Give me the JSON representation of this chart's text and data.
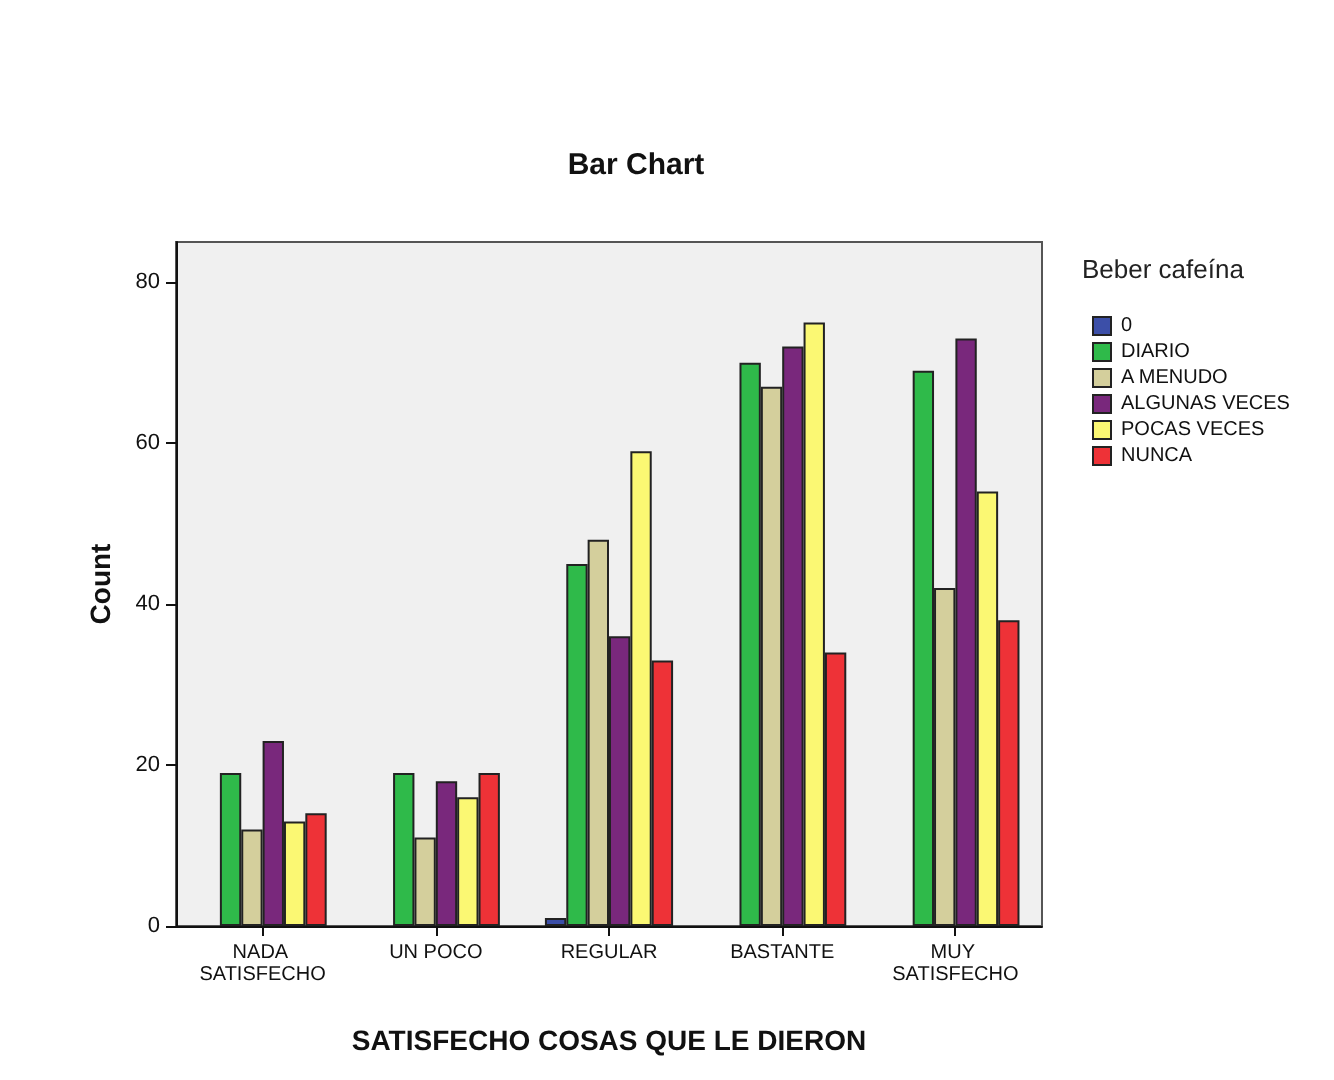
{
  "chart_data": {
    "type": "bar",
    "title": "Bar Chart",
    "xlabel": "SATISFECHO COSAS QUE LE DIERON",
    "ylabel": "Count",
    "legend_title": "Beber cafeína",
    "legend": "right",
    "categories": [
      "NADA SATISFECHO",
      "UN POCO",
      "REGULAR",
      "BASTANTE",
      "MUY SATISFECHO"
    ],
    "ylim": [
      0,
      85
    ],
    "yticks": [
      0,
      20,
      40,
      60,
      80
    ],
    "grid": false,
    "series": [
      {
        "name": "0",
        "color": "#3c4fa8",
        "values": [
          null,
          null,
          1,
          null,
          null
        ]
      },
      {
        "name": "DIARIO",
        "color": "#2fba4a",
        "values": [
          19,
          19,
          45,
          70,
          69
        ]
      },
      {
        "name": "A MENUDO",
        "color": "#d4cf9c",
        "values": [
          12,
          11,
          48,
          67,
          42
        ]
      },
      {
        "name": "ALGUNAS VECES",
        "color": "#79287c",
        "values": [
          23,
          18,
          36,
          72,
          73
        ]
      },
      {
        "name": "POCAS VECES",
        "color": "#fbf873",
        "values": [
          13,
          16,
          59,
          75,
          54
        ]
      },
      {
        "name": "NUNCA",
        "color": "#ee3237",
        "values": [
          14,
          19,
          33,
          34,
          38
        ]
      }
    ]
  }
}
